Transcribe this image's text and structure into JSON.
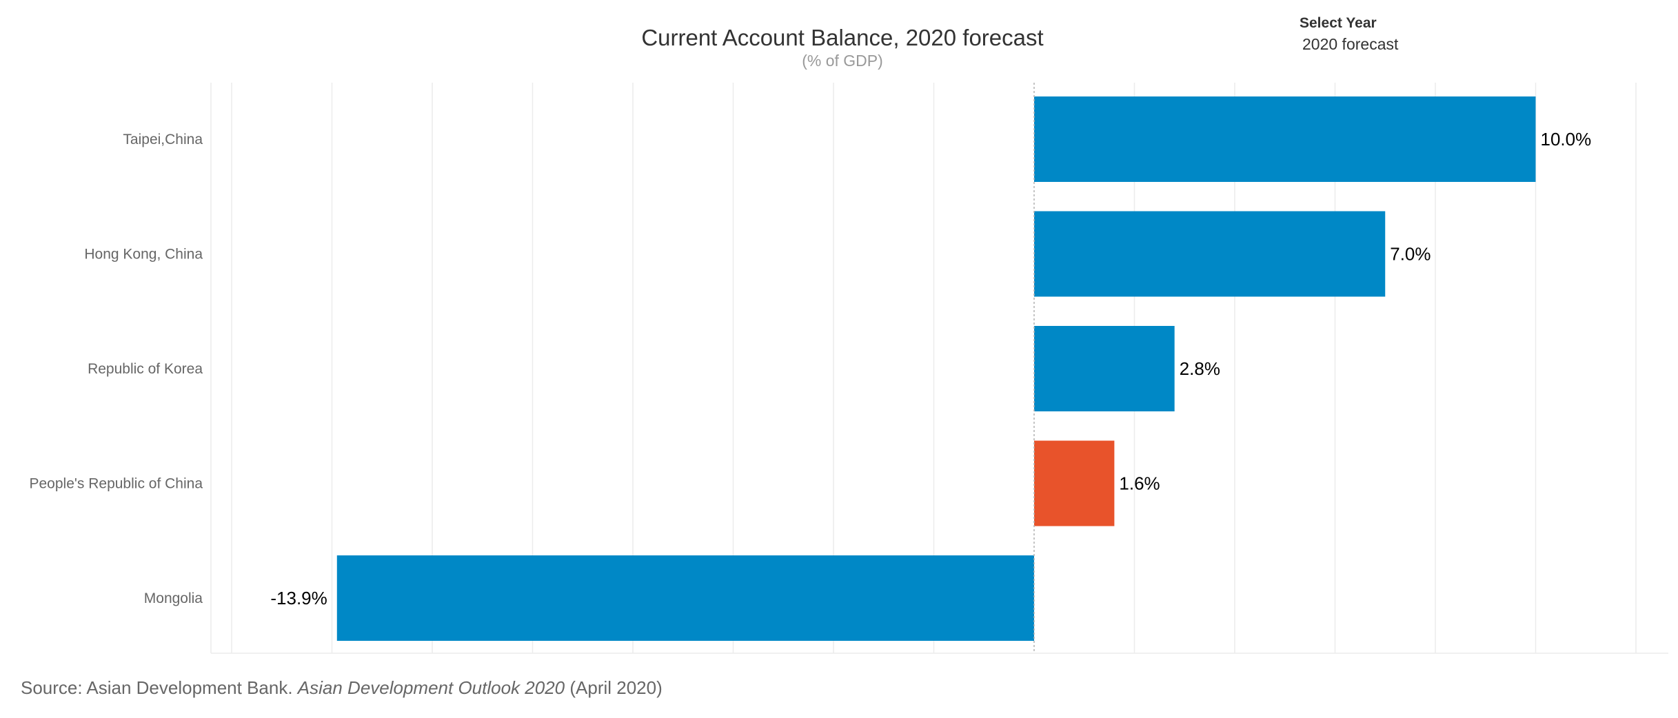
{
  "selector": {
    "title": "Select Year",
    "selected": "2020 forecast"
  },
  "source": {
    "prefix": "Source: Asian Development Bank. ",
    "publication": "Asian Development Outlook 2020",
    "suffix": " (April 2020)"
  },
  "colors": {
    "default_bar": "#0088c6",
    "highlight_bar": "#e8532b",
    "gridline": "#ececec",
    "zero_line": "#b0b0b0"
  },
  "chart_data": {
    "type": "bar",
    "orientation": "horizontal",
    "title": "Current Account Balance, 2020 forecast",
    "subtitle": "(% of GDP)",
    "xlabel": "",
    "ylabel": "",
    "unit": "% of GDP",
    "categories": [
      "Taipei,China",
      "Hong Kong, China",
      "Republic of Korea",
      "People's Republic of China",
      "Mongolia"
    ],
    "values": [
      10.0,
      7.0,
      2.8,
      1.6,
      -13.9
    ],
    "data_labels": [
      "10.0%",
      "7.0%",
      "2.8%",
      "1.6%",
      "-13.9%"
    ],
    "highlight": [
      "People's Republic of China"
    ],
    "xlim": [
      -16,
      12
    ],
    "grid_step": 2,
    "grid": true,
    "legend": "none"
  }
}
